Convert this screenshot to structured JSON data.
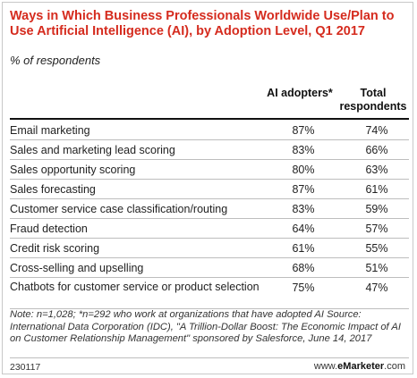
{
  "chart_data": {
    "type": "table",
    "title": "Ways in Which Business Professionals Worldwide Use/Plan to Use Artificial Intelligence (AI), by Adoption Level, Q1 2017",
    "subtitle": "% of respondents",
    "columns": [
      "AI adopters*",
      "Total respondents"
    ],
    "rows": [
      {
        "label": "Email marketing",
        "values": [
          "87%",
          "74%"
        ]
      },
      {
        "label": "Sales and marketing lead scoring",
        "values": [
          "83%",
          "66%"
        ]
      },
      {
        "label": "Sales opportunity scoring",
        "values": [
          "80%",
          "63%"
        ]
      },
      {
        "label": "Sales forecasting",
        "values": [
          "87%",
          "61%"
        ]
      },
      {
        "label": "Customer service case classification/routing",
        "values": [
          "83%",
          "59%"
        ]
      },
      {
        "label": "Fraud detection",
        "values": [
          "64%",
          "57%"
        ]
      },
      {
        "label": "Credit risk scoring",
        "values": [
          "61%",
          "55%"
        ]
      },
      {
        "label": "Cross-selling and upselling",
        "values": [
          "68%",
          "51%"
        ]
      },
      {
        "label": "Chatbots for customer service or product selection",
        "values": [
          "75%",
          "47%"
        ]
      }
    ],
    "note": "Note: n=1,028; *n=292 who work at organizations that have adopted AI Source: International Data Corporation (IDC), \"A Trillion-Dollar Boost: The Economic Impact of AI on Customer Relationship Management\" sponsored by Salesforce, June 14, 2017",
    "footer_code": "230117",
    "brand_prefix": "www.",
    "brand_name": "eMarketer",
    "brand_suffix": ".com"
  }
}
